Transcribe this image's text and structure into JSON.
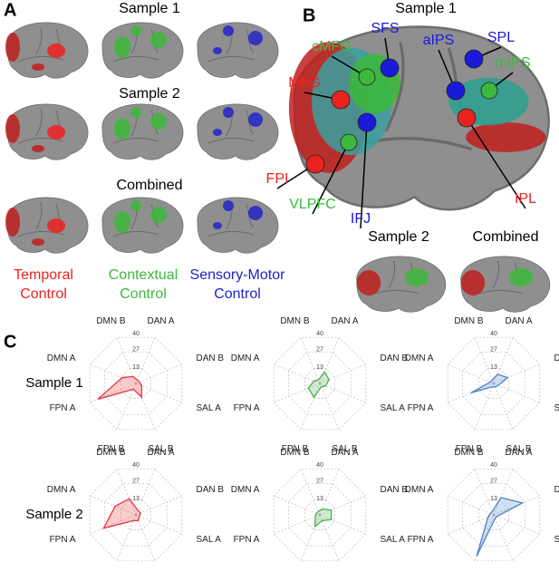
{
  "panel_a": {
    "label": "A",
    "headers": [
      "Sample 1",
      "Sample 2",
      "Combined"
    ],
    "legend": [
      {
        "lines": [
          "Temporal",
          "Control"
        ],
        "color": "#e8231f"
      },
      {
        "lines": [
          "Contextual",
          "Control"
        ],
        "color": "#3cb83a"
      },
      {
        "lines": [
          "Sensory-Motor",
          "Control"
        ],
        "color": "#2020d0"
      }
    ]
  },
  "panel_b": {
    "label": "B",
    "header": "Sample 1",
    "sub_headers": [
      "Sample 2",
      "Combined"
    ],
    "regions": [
      {
        "name": "SFS",
        "color": "#1a1ad8"
      },
      {
        "name": "SPL",
        "color": "#1a1ad8"
      },
      {
        "name": "cMFG",
        "color": "#3cb83a"
      },
      {
        "name": "aIPS",
        "color": "#1a1ad8"
      },
      {
        "name": "mIPS",
        "color": "#3cb83a"
      },
      {
        "name": "MFG",
        "color": "#e8231f"
      },
      {
        "name": "FPI",
        "color": "#e8231f"
      },
      {
        "name": "VLPFC",
        "color": "#3cb83a"
      },
      {
        "name": "IFJ",
        "color": "#1a1ad8"
      },
      {
        "name": "IPL",
        "color": "#e8231f"
      }
    ]
  },
  "panel_c": {
    "label": "C",
    "rows": [
      "Sample 1",
      "Sample 2"
    ]
  },
  "chart_data": [
    {
      "type": "radar",
      "categories": [
        "DAN A",
        "DAN B",
        "SAL A",
        "SAL B",
        "FPN B",
        "FPN A",
        "DMN A",
        "DMN B"
      ],
      "values": [
        3,
        3,
        5,
        12,
        5,
        33,
        12,
        6
      ],
      "color": "#e8343a",
      "rlim": [
        0,
        40
      ],
      "rticks": [
        13,
        27,
        40
      ]
    },
    {
      "type": "radar",
      "categories": [
        "DAN A",
        "DAN B",
        "SAL A",
        "SAL B",
        "FPN B",
        "FPN A",
        "DMN A",
        "DMN B"
      ],
      "values": [
        10,
        8,
        5,
        3,
        12,
        10,
        5,
        3
      ],
      "color": "#4cae4c",
      "rlim": [
        0,
        40
      ],
      "rticks": [
        13,
        27,
        40
      ]
    },
    {
      "type": "radar",
      "categories": [
        "DAN A",
        "DAN B",
        "SAL A",
        "SAL B",
        "FPN B",
        "FPN A",
        "DMN A",
        "DMN B"
      ],
      "values": [
        8,
        12,
        4,
        3,
        3,
        20,
        3,
        3
      ],
      "color": "#4a86c8",
      "rlim": [
        0,
        40
      ],
      "rticks": [
        13,
        27,
        40
      ]
    },
    {
      "type": "radar",
      "categories": [
        "DAN A",
        "DAN B",
        "SAL A",
        "SAL B",
        "FPN B",
        "FPN A",
        "DMN A",
        "DMN B"
      ],
      "values": [
        4,
        4,
        3,
        5,
        5,
        28,
        18,
        14
      ],
      "color": "#e8343a",
      "rlim": [
        0,
        40
      ],
      "rticks": [
        13,
        27,
        40
      ]
    },
    {
      "type": "radar",
      "categories": [
        "DAN A",
        "DAN B",
        "SAL A",
        "SAL B",
        "FPN B",
        "FPN A",
        "DMN A",
        "DMN B"
      ],
      "values": [
        5,
        10,
        10,
        5,
        10,
        4,
        3,
        3
      ],
      "color": "#4cae4c",
      "rlim": [
        0,
        40
      ],
      "rticks": [
        13,
        27,
        40
      ]
    },
    {
      "type": "radar",
      "categories": [
        "DAN A",
        "DAN B",
        "SAL A",
        "SAL B",
        "FPN B",
        "FPN A",
        "DMN A",
        "DMN B"
      ],
      "values": [
        15,
        25,
        3,
        3,
        36,
        5,
        3,
        3
      ],
      "color": "#4a86c8",
      "rlim": [
        0,
        40
      ],
      "rticks": [
        13,
        27,
        40
      ]
    }
  ]
}
